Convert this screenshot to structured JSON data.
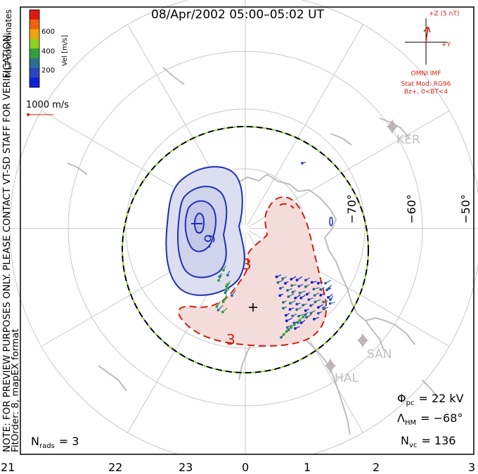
{
  "title": "08/Apr/2002 05:00–05:02 UT",
  "coordinates_label": "MLT coordinates",
  "colorbar": {
    "label": "Vel [m/s]",
    "ticks": [
      "600",
      "400",
      "200"
    ],
    "colors": [
      "#d91a0f",
      "#f0620e",
      "#f2a20d",
      "#8ed01e",
      "#33a13a",
      "#2a6e93",
      "#2b45c1",
      "#1420d8"
    ]
  },
  "velocity_scale_label": "1000 m/s",
  "note_text": "NOTE: FOR PREVIEW PURPOSES ONLY. PLEASE CONTACT VT-SD STAFF FOR VERIFICATION.",
  "fit_text": "FitOrder: 8, mapEX format",
  "imf": {
    "z_label": "+Z (5 nT)",
    "y_label": "+Y",
    "source": "OMNI IMF",
    "model": "Stat Mod: RG96",
    "condition": "Bz+, 0<BT<4"
  },
  "stations": [
    {
      "name": "KER"
    },
    {
      "name": "SAN"
    },
    {
      "name": "HAL"
    }
  ],
  "latitude_labels": [
    "−70°",
    "−60°",
    "−50°"
  ],
  "mlt_labels": [
    "21",
    "22",
    "23",
    "0",
    "1",
    "2",
    "3"
  ],
  "contour_labels": {
    "negative": "-9",
    "positive_upper": "3",
    "positive_lower": "3"
  },
  "stats": {
    "phi_symbol": "Φ",
    "phi_sub": "pc",
    "phi_value": "= 22 kV",
    "lambda_symbol": "Λ",
    "lambda_sub": "HM",
    "lambda_value": "= −68°",
    "nvc_symbol": "N",
    "nvc_sub": "vc",
    "nvc_value": "= 136",
    "nrads_symbol": "N",
    "nrads_sub": "rads",
    "nrads_value": "= 3"
  },
  "colors": {
    "neg": "#1f2fb5",
    "neg_fill": "#dcdff0",
    "pos": "#d11f10",
    "pos_fill": "#f3dcda",
    "hmb": "#000000",
    "hmb_dash": "#7bd02a",
    "grid": "#c8c8c8",
    "coast": "#bdbdbd"
  }
}
